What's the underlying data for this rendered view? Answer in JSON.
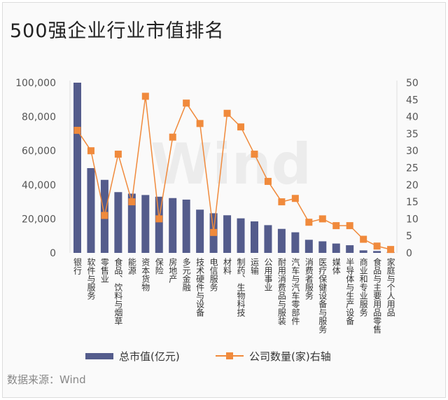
{
  "chart_data": {
    "type": "bar+line",
    "title": "500强企业行业市值排名",
    "categories": [
      "银行",
      "软件与服务",
      "零售业",
      "食品、饮料与烟草",
      "能源",
      "资本货物",
      "保险",
      "房地产",
      "多元金融",
      "技术硬件与设备",
      "电信服务",
      "材料",
      "制药、生物科技",
      "运输",
      "公用事业",
      "耐用消费品与服装",
      "汽车与汽车零部件",
      "消费者服务",
      "医疗保健设备与服务",
      "媒体",
      "半导体与生产设备",
      "商业和专业服务",
      "食品与主要用品零售",
      "家庭与个人用品"
    ],
    "series": [
      {
        "name": "总市值(亿元)",
        "type": "bar",
        "axis": "left",
        "color": "#545c8c",
        "values": [
          100000,
          49800,
          42900,
          35700,
          34800,
          34000,
          33000,
          32200,
          31300,
          25400,
          23300,
          22100,
          20300,
          18500,
          16300,
          14100,
          12100,
          7700,
          6800,
          5500,
          4500,
          1500,
          1100,
          500
        ]
      },
      {
        "name": "公司数量(家)右轴",
        "type": "line",
        "axis": "right",
        "color": "#f08a3c",
        "values": [
          36,
          30,
          11,
          29,
          15,
          46,
          10,
          34,
          44,
          38,
          6,
          41,
          37,
          29,
          21,
          15,
          16,
          9,
          10,
          8,
          8,
          4,
          2,
          1
        ]
      }
    ],
    "left_axis": {
      "ylim": [
        0,
        100000
      ],
      "ticks": [
        "0",
        "20,000",
        "40,000",
        "60,000",
        "80,000",
        "100,000"
      ]
    },
    "right_axis": {
      "ylim": [
        0,
        50
      ],
      "ticks": [
        "0",
        "5",
        "10",
        "15",
        "20",
        "25",
        "30",
        "35",
        "40",
        "45",
        "50"
      ]
    },
    "legend": "bottom",
    "grid": false,
    "watermark": "Wind"
  },
  "source": "数据来源：Wind"
}
